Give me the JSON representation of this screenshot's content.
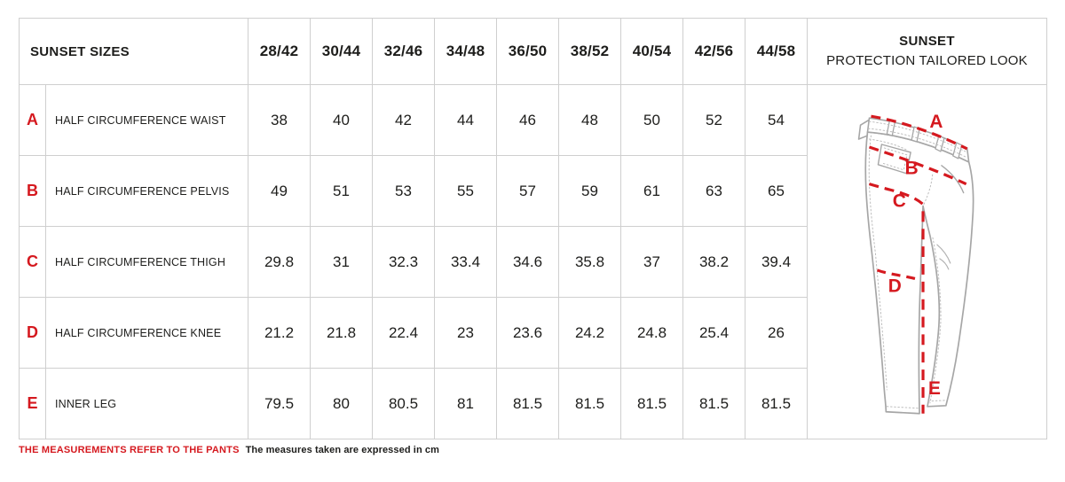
{
  "chart_data": {
    "type": "table",
    "title": "SUNSET SIZES",
    "units": "cm",
    "columns": [
      "28/42",
      "30/44",
      "32/46",
      "34/48",
      "36/50",
      "38/52",
      "40/54",
      "42/56",
      "44/58"
    ],
    "rows": [
      {
        "key": "A",
        "label": "HALF CIRCUMFERENCE WAIST",
        "values": [
          38,
          40,
          42,
          44,
          46,
          48,
          50,
          52,
          54
        ]
      },
      {
        "key": "B",
        "label": "HALF CIRCUMFERENCE PELVIS",
        "values": [
          49,
          51,
          53,
          55,
          57,
          59,
          61,
          63,
          65
        ]
      },
      {
        "key": "C",
        "label": "HALF CIRCUMFERENCE THIGH",
        "values": [
          29.8,
          31,
          32.3,
          33.4,
          34.6,
          35.8,
          37,
          38.2,
          39.4
        ]
      },
      {
        "key": "D",
        "label": "HALF CIRCUMFERENCE KNEE",
        "values": [
          21.2,
          21.8,
          22.4,
          23,
          23.6,
          24.2,
          24.8,
          25.4,
          26
        ]
      },
      {
        "key": "E",
        "label": "INNER LEG",
        "values": [
          79.5,
          80,
          80.5,
          81,
          81.5,
          81.5,
          81.5,
          81.5,
          81.5
        ]
      }
    ]
  },
  "header": {
    "product_title": "SUNSET",
    "product_subtitle": "PROTECTION TAILORED LOOK"
  },
  "diagram": {
    "labels": [
      "A",
      "B",
      "C",
      "D",
      "E"
    ]
  },
  "footer": {
    "emphasis": "THE MEASUREMENTS REFER TO THE PANTS",
    "note": "The measures taken are expressed in cm"
  },
  "colors": {
    "accent_red": "#d5191f",
    "border_gray": "#cfcfcf",
    "outline_gray": "#a6a6a6",
    "stitch_gray": "#bdbdbd",
    "text_dark": "#1d1d1b"
  }
}
